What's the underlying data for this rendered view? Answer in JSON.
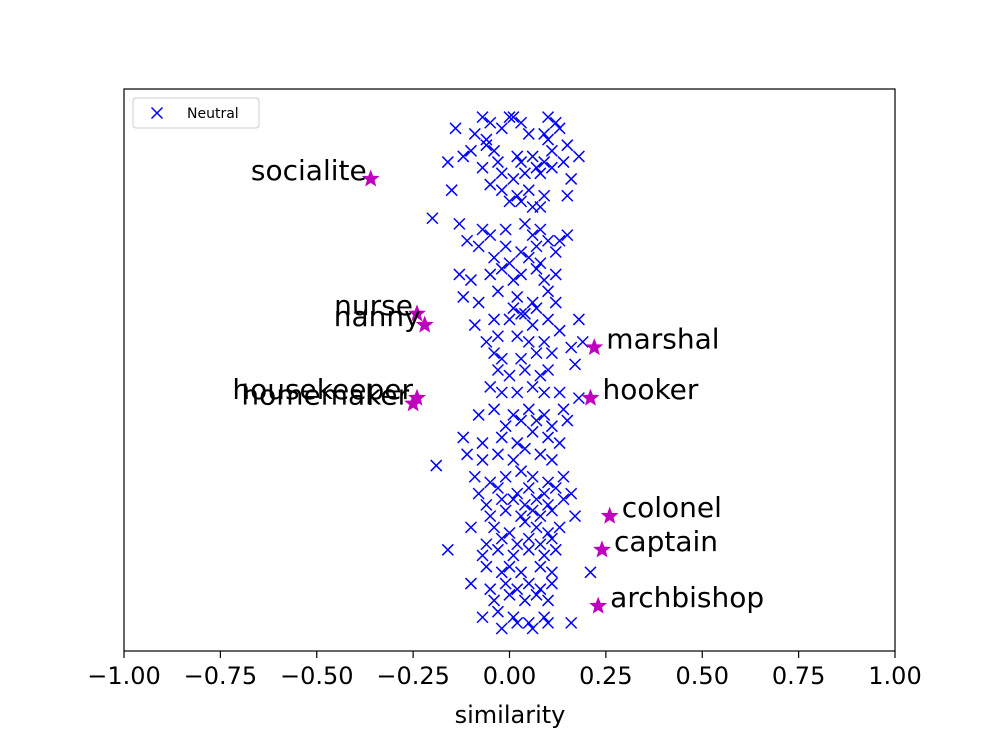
{
  "chart_data": {
    "type": "scatter",
    "title": "",
    "xlabel": "similarity",
    "ylabel": "",
    "xlim": [
      -1.0,
      1.0
    ],
    "ylim": [
      0,
      1
    ],
    "grid": false,
    "legend_placement": "top-left",
    "x_ticks": [
      "−1.00",
      "−0.75",
      "−0.50",
      "−0.25",
      "0.00",
      "0.25",
      "0.50",
      "0.75",
      "1.00"
    ],
    "x_tick_values": [
      -1.0,
      -0.75,
      -0.5,
      -0.25,
      0.0,
      0.25,
      0.5,
      0.75,
      1.0
    ],
    "series": [
      {
        "name": "Neutral",
        "marker": "x",
        "color": "#0000ff",
        "x": [
          -0.07,
          -0.05,
          -0.02,
          0.0,
          0.01,
          0.03,
          0.1,
          0.12,
          -0.14,
          -0.09,
          -0.06,
          0.05,
          0.09,
          0.13,
          -0.1,
          -0.06,
          -0.04,
          0.02,
          0.1,
          0.11,
          0.15,
          0.18,
          -0.16,
          -0.12,
          -0.07,
          -0.03,
          0.03,
          0.06,
          0.09,
          0.11,
          0.14,
          -0.02,
          0.01,
          0.04,
          0.07,
          0.08,
          0.16,
          -0.15,
          -0.05,
          -0.02,
          0.02,
          0.05,
          0.09,
          0.15,
          0.06,
          0.08,
          0.0,
          0.03,
          -0.2,
          -0.13,
          -0.07,
          -0.05,
          -0.01,
          0.04,
          0.06,
          0.08,
          0.13,
          0.15,
          -0.11,
          -0.08,
          -0.01,
          0.03,
          0.07,
          0.1,
          0.12,
          -0.04,
          0.0,
          0.05,
          0.08,
          -0.13,
          -0.1,
          -0.05,
          -0.02,
          0.01,
          0.03,
          0.07,
          0.09,
          0.12,
          -0.12,
          -0.08,
          -0.03,
          0.02,
          0.06,
          0.1,
          0.12,
          0.01,
          0.04,
          0.07,
          -0.09,
          -0.04,
          0.0,
          0.03,
          0.06,
          0.1,
          0.13,
          0.18,
          -0.06,
          -0.03,
          0.02,
          0.05,
          0.09,
          0.16,
          0.19,
          -0.04,
          -0.02,
          0.03,
          0.07,
          0.11,
          0.17,
          -0.03,
          0.0,
          0.04,
          0.08,
          0.1,
          -0.05,
          -0.02,
          0.02,
          0.06,
          0.09,
          0.13,
          0.18,
          -0.08,
          -0.04,
          0.01,
          0.05,
          0.09,
          0.14,
          -0.01,
          0.03,
          0.07,
          0.11,
          0.15,
          -0.12,
          -0.07,
          -0.02,
          0.02,
          0.06,
          0.1,
          0.13,
          -0.11,
          -0.07,
          -0.03,
          0.01,
          0.04,
          0.08,
          0.11,
          -0.09,
          -0.05,
          -0.01,
          0.03,
          0.06,
          0.1,
          0.14,
          -0.19,
          -0.08,
          -0.03,
          0.02,
          0.05,
          0.09,
          0.12,
          -0.06,
          -0.02,
          0.01,
          0.04,
          0.07,
          0.1,
          0.14,
          0.16,
          -0.05,
          -0.01,
          0.03,
          0.06,
          0.08,
          0.11,
          0.17,
          -0.1,
          -0.04,
          0.0,
          0.04,
          0.07,
          0.1,
          0.13,
          -0.06,
          -0.02,
          0.02,
          0.05,
          0.08,
          0.11,
          -0.16,
          -0.07,
          -0.03,
          0.01,
          0.05,
          0.09,
          0.12,
          -0.06,
          -0.02,
          0.0,
          0.03,
          0.08,
          0.11,
          0.21,
          -0.1,
          -0.05,
          -0.01,
          0.02,
          0.05,
          0.08,
          0.11,
          -0.04,
          0.0,
          0.04,
          0.07,
          0.1,
          -0.07,
          -0.03,
          0.01,
          0.05,
          0.09,
          -0.02,
          0.02,
          0.06,
          0.1,
          0.16
        ],
        "y": [
          0.95,
          0.94,
          0.93,
          0.95,
          0.95,
          0.94,
          0.95,
          0.94,
          0.93,
          0.92,
          0.91,
          0.92,
          0.92,
          0.93,
          0.89,
          0.9,
          0.89,
          0.88,
          0.91,
          0.89,
          0.9,
          0.88,
          0.87,
          0.88,
          0.86,
          0.87,
          0.87,
          0.88,
          0.87,
          0.86,
          0.87,
          0.85,
          0.84,
          0.85,
          0.86,
          0.85,
          0.84,
          0.82,
          0.83,
          0.82,
          0.81,
          0.82,
          0.81,
          0.81,
          0.79,
          0.79,
          0.8,
          0.8,
          0.77,
          0.76,
          0.75,
          0.74,
          0.75,
          0.76,
          0.74,
          0.75,
          0.73,
          0.74,
          0.73,
          0.72,
          0.72,
          0.71,
          0.72,
          0.73,
          0.71,
          0.7,
          0.69,
          0.7,
          0.69,
          0.67,
          0.66,
          0.67,
          0.68,
          0.66,
          0.67,
          0.68,
          0.66,
          0.67,
          0.63,
          0.62,
          0.64,
          0.63,
          0.62,
          0.64,
          0.62,
          0.61,
          0.6,
          0.61,
          0.58,
          0.59,
          0.59,
          0.6,
          0.58,
          0.59,
          0.57,
          0.59,
          0.55,
          0.56,
          0.56,
          0.55,
          0.55,
          0.54,
          0.55,
          0.53,
          0.52,
          0.52,
          0.53,
          0.53,
          0.51,
          0.5,
          0.49,
          0.5,
          0.49,
          0.5,
          0.47,
          0.46,
          0.46,
          0.47,
          0.46,
          0.46,
          0.45,
          0.42,
          0.43,
          0.42,
          0.43,
          0.42,
          0.43,
          0.4,
          0.41,
          0.41,
          0.4,
          0.41,
          0.38,
          0.37,
          0.38,
          0.37,
          0.39,
          0.38,
          0.37,
          0.35,
          0.34,
          0.35,
          0.34,
          0.36,
          0.35,
          0.34,
          0.31,
          0.3,
          0.31,
          0.32,
          0.31,
          0.3,
          0.31,
          0.33,
          0.28,
          0.29,
          0.28,
          0.29,
          0.28,
          0.29,
          0.26,
          0.27,
          0.27,
          0.26,
          0.27,
          0.26,
          0.27,
          0.28,
          0.24,
          0.25,
          0.24,
          0.25,
          0.24,
          0.25,
          0.24,
          0.22,
          0.22,
          0.21,
          0.23,
          0.22,
          0.21,
          0.22,
          0.19,
          0.2,
          0.19,
          0.2,
          0.19,
          0.2,
          0.18,
          0.17,
          0.18,
          0.17,
          0.18,
          0.17,
          0.18,
          0.15,
          0.14,
          0.15,
          0.14,
          0.15,
          0.14,
          0.14,
          0.12,
          0.11,
          0.12,
          0.11,
          0.12,
          0.11,
          0.12,
          0.09,
          0.1,
          0.09,
          0.1,
          0.09,
          0.06,
          0.07,
          0.06,
          0.05,
          0.06,
          0.04,
          0.05,
          0.04,
          0.05,
          0.05
        ]
      },
      {
        "name": "",
        "marker": "star",
        "color": "#bf00bf",
        "points": [
          {
            "label": "socialite",
            "x": -0.36,
            "y": 0.84,
            "side": "left"
          },
          {
            "label": "nurse",
            "x": -0.24,
            "y": 0.6,
            "side": "left"
          },
          {
            "label": "nanny",
            "x": -0.22,
            "y": 0.58,
            "side": "left"
          },
          {
            "label": "housekeeper",
            "x": -0.24,
            "y": 0.45,
            "side": "left"
          },
          {
            "label": "homemaker",
            "x": -0.25,
            "y": 0.44,
            "side": "left"
          },
          {
            "label": "marshal",
            "x": 0.22,
            "y": 0.54,
            "side": "right"
          },
          {
            "label": "hooker",
            "x": 0.21,
            "y": 0.45,
            "side": "right"
          },
          {
            "label": "colonel",
            "x": 0.26,
            "y": 0.24,
            "side": "right"
          },
          {
            "label": "captain",
            "x": 0.24,
            "y": 0.18,
            "side": "right"
          },
          {
            "label": "archbishop",
            "x": 0.23,
            "y": 0.08,
            "side": "right"
          }
        ]
      }
    ],
    "legend": [
      {
        "label": "Neutral",
        "marker": "x",
        "color": "#0000ff"
      }
    ]
  }
}
